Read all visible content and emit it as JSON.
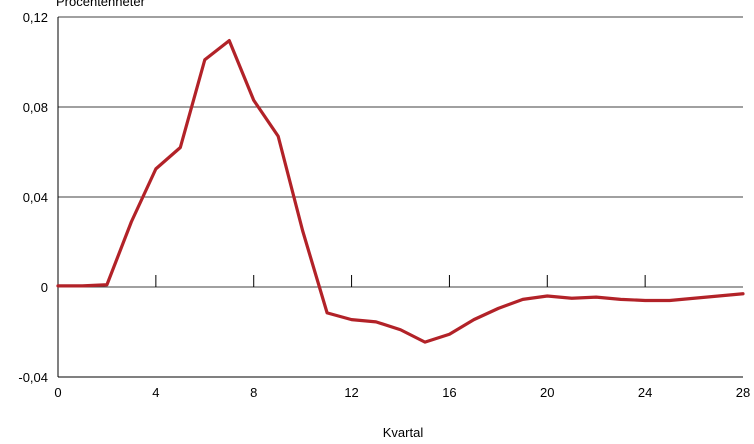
{
  "chart_data": {
    "type": "line",
    "ylabel": "Procentenheter",
    "xlabel": "Kvartal",
    "xlim": [
      0,
      28
    ],
    "ylim": [
      -0.04,
      0.12
    ],
    "x_ticks": [
      0,
      4,
      8,
      12,
      16,
      20,
      24,
      28
    ],
    "x_tick_labels": [
      "0",
      "4",
      "8",
      "12",
      "16",
      "20",
      "24",
      "28"
    ],
    "y_ticks": [
      -0.04,
      0,
      0.04,
      0.08,
      0.12
    ],
    "y_tick_labels": [
      "-0,04",
      "0",
      "0,04",
      "0,08",
      "0,12"
    ],
    "grid": "horizontal",
    "series": [
      {
        "color": "#b22228",
        "x": [
          0,
          1,
          2,
          3,
          4,
          5,
          6,
          7,
          8,
          9,
          10,
          11,
          12,
          13,
          14,
          15,
          16,
          17,
          18,
          19,
          20,
          21,
          22,
          23,
          24,
          25,
          26,
          27,
          28
        ],
        "values": [
          0.0005,
          0.0005,
          0.001,
          0.029,
          0.0525,
          0.062,
          0.101,
          0.1095,
          0.083,
          0.067,
          0.025,
          -0.0115,
          -0.0145,
          -0.0155,
          -0.019,
          -0.0245,
          -0.021,
          -0.0145,
          -0.0095,
          -0.0055,
          -0.004,
          -0.005,
          -0.0045,
          -0.0055,
          -0.006,
          -0.006,
          -0.005,
          -0.004,
          -0.003
        ]
      }
    ]
  }
}
